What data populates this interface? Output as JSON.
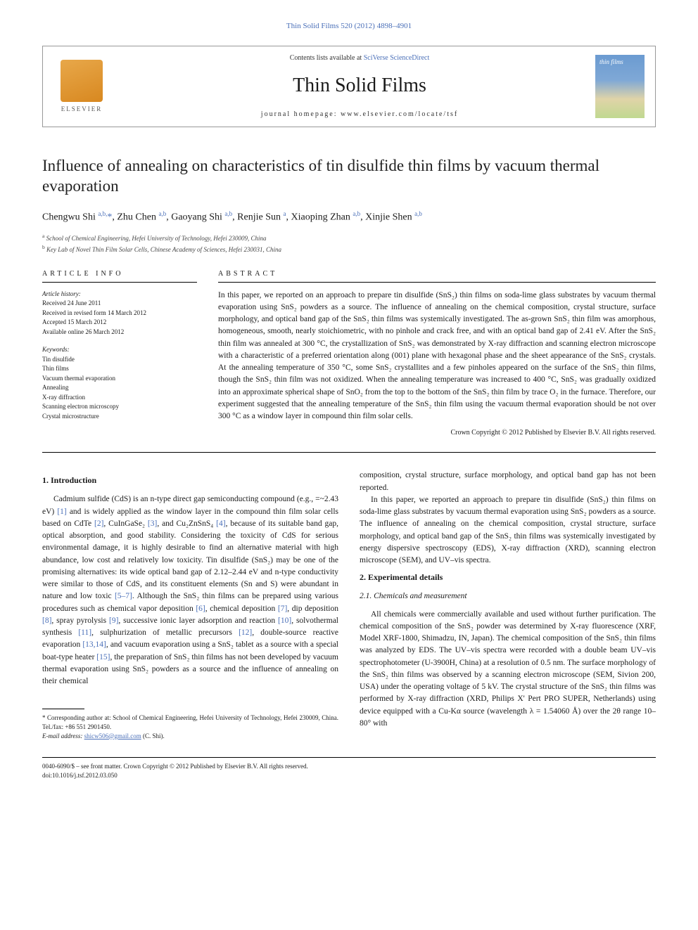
{
  "top_link": "Thin Solid Films 520 (2012) 4898–4901",
  "header": {
    "elsevier_label": "ELSEVIER",
    "contents_pre": "Contents lists available at ",
    "contents_link": "SciVerse ScienceDirect",
    "journal": "Thin Solid Films",
    "homepage": "journal homepage: www.elsevier.com/locate/tsf",
    "cover_text": "thin films"
  },
  "title": "Influence of annealing on characteristics of tin disulfide thin films by vacuum thermal evaporation",
  "authors_html": "Chengwu Shi <sup>a,b,</sup><span class='star'>*</span>, Zhu Chen <sup>a,b</sup>, Gaoyang Shi <sup>a,b</sup>, Renjie Sun <sup>a</sup>, Xiaoping Zhan <sup>a,b</sup>, Xinjie Shen <sup>a,b</sup>",
  "affiliations": [
    {
      "sup": "a",
      "text": "School of Chemical Engineering, Hefei University of Technology, Hefei 230009, China"
    },
    {
      "sup": "b",
      "text": "Key Lab of Novel Thin Film Solar Cells, Chinese Academy of Sciences, Hefei 230031, China"
    }
  ],
  "info": {
    "heading": "ARTICLE INFO",
    "history_head": "Article history:",
    "history": [
      "Received 24 June 2011",
      "Received in revised form 14 March 2012",
      "Accepted 15 March 2012",
      "Available online 26 March 2012"
    ],
    "keywords_head": "Keywords:",
    "keywords": [
      "Tin disulfide",
      "Thin films",
      "Vacuum thermal evaporation",
      "Annealing",
      "X-ray diffraction",
      "Scanning electron microscopy",
      "Crystal microstructure"
    ]
  },
  "abstract": {
    "heading": "ABSTRACT",
    "text": "In this paper, we reported on an approach to prepare tin disulfide (SnS₂) thin films on soda-lime glass substrates by vacuum thermal evaporation using SnS₂ powders as a source. The influence of annealing on the chemical composition, crystal structure, surface morphology, and optical band gap of the SnS₂ thin films was systemically investigated. The as-grown SnS₂ thin film was amorphous, homogeneous, smooth, nearly stoichiometric, with no pinhole and crack free, and with an optical band gap of 2.41 eV. After the SnS₂ thin film was annealed at 300 °C, the crystallization of SnS₂ was demonstrated by X-ray diffraction and scanning electron microscope with a characteristic of a preferred orientation along (001) plane with hexagonal phase and the sheet appearance of the SnS₂ crystals. At the annealing temperature of 350 °C, some SnS₂ crystallites and a few pinholes appeared on the surface of the SnS₂ thin films, though the SnS₂ thin film was not oxidized. When the annealing temperature was increased to 400 °C, SnS₂ was gradually oxidized into an approximate spherical shape of SnO₂ from the top to the bottom of the SnS₂ thin film by trace O₂ in the furnace. Therefore, our experiment suggested that the annealing temperature of the SnS₂ thin film using the vacuum thermal evaporation should be not over 300 °C as a window layer in compound thin film solar cells.",
    "copyright": "Crown Copyright © 2012 Published by Elsevier B.V. All rights reserved."
  },
  "body": {
    "intro_heading": "1. Introduction",
    "intro_p1": "Cadmium sulfide (CdS) is an n-type direct gap semiconducting compound (e.g., =~2.43 eV) [1] and is widely applied as the window layer in the compound thin film solar cells based on CdTe [2], CuInGaSe₂ [3], and Cu₂ZnSnS₄ [4], because of its suitable band gap, optical absorption, and good stability. Considering the toxicity of CdS for serious environmental damage, it is highly desirable to find an alternative material with high abundance, low cost and relatively low toxicity. Tin disulfide (SnS₂) may be one of the promising alternatives: its wide optical band gap of 2.12–2.44 eV and n-type conductivity were similar to those of CdS, and its constituent elements (Sn and S) were abundant in nature and low toxic [5–7]. Although the SnS₂ thin films can be prepared using various procedures such as chemical vapor deposition [6], chemical deposition [7], dip deposition [8], spray pyrolysis [9], successive ionic layer adsorption and reaction [10], solvothermal synthesis [11], sulphurization of metallic precursors [12], double-source reactive evaporation [13,14], and vacuum evaporation using a SnS₂ tablet as a source with a special boat-type heater [15], the preparation of SnS₂ thin films has not been developed by vacuum thermal evaporation using SnS₂ powders as a source and the influence of annealing on their chemical",
    "intro_p1_cont": "composition, crystal structure, surface morphology, and optical band gap has not been reported.",
    "intro_p2": "In this paper, we reported an approach to prepare tin disulfide (SnS₂) thin films on soda-lime glass substrates by vacuum thermal evaporation using SnS₂ powders as a source. The influence of annealing on the chemical composition, crystal structure, surface morphology, and optical band gap of the SnS₂ thin films was systemically investigated by energy dispersive spectroscopy (EDS), X-ray diffraction (XRD), scanning electron microscope (SEM), and UV–vis spectra.",
    "exp_heading": "2. Experimental details",
    "chem_heading": "2.1. Chemicals and measurement",
    "chem_p": "All chemicals were commercially available and used without further purification. The chemical composition of the SnS₂ powder was determined by X-ray fluorescence (XRF, Model XRF-1800, Shimadzu, IN, Japan). The chemical composition of the SnS₂ thin films was analyzed by EDS. The UV–vis spectra were recorded with a double beam UV–vis spectrophotometer (U-3900H, China) at a resolution of 0.5 nm. The surface morphology of the SnS₂ thin films was observed by a scanning electron microscope (SEM, Sivion 200, USA) under the operating voltage of 5 kV. The crystal structure of the SnS₂ thin films was performed by X-ray diffraction (XRD, Philips X' Pert PRO SUPER, Netherlands) using device equipped with a Cu-Kα source (wavelength λ = 1.54060 Å) over the 2θ range 10–80° with"
  },
  "footnote": {
    "corr": "* Corresponding author at: School of Chemical Engineering, Hefei University of Technology, Hefei 230009, China. Tel./fax: +86 551 2901450.",
    "email_label": "E-mail address: ",
    "email": "shicw506@gmail.com",
    "email_who": " (C. Shi)."
  },
  "footer": {
    "line1": "0040-6090/$ – see front matter. Crown Copyright © 2012 Published by Elsevier B.V. All rights reserved.",
    "line2": "doi:10.1016/j.tsf.2012.03.050"
  },
  "colors": {
    "link": "#4a6fb8",
    "text": "#1a1a1a"
  }
}
